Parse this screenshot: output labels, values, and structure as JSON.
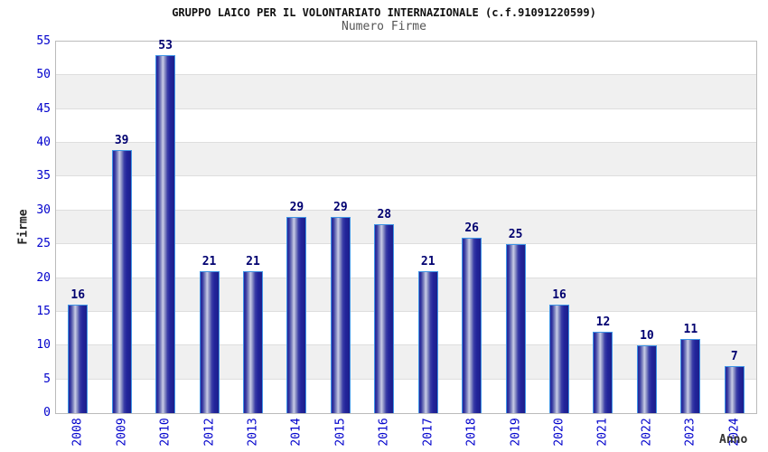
{
  "chart_data": {
    "type": "bar",
    "title": "GRUPPO LAICO PER IL VOLONTARIATO INTERNAZIONALE (c.f.91091220599)",
    "subtitle": "Numero Firme",
    "xlabel": "Anno",
    "ylabel": "Firme",
    "categories": [
      "2008",
      "2009",
      "2010",
      "2012",
      "2013",
      "2014",
      "2015",
      "2016",
      "2017",
      "2018",
      "2019",
      "2020",
      "2021",
      "2022",
      "2023",
      "2024"
    ],
    "values": [
      16,
      39,
      53,
      21,
      21,
      29,
      29,
      28,
      21,
      26,
      25,
      16,
      12,
      10,
      11,
      7
    ],
    "ylim": [
      0,
      55
    ],
    "ytick_step": 5,
    "grid": true,
    "legend": "none",
    "colors": {
      "bar_dark": "#23259c",
      "bar_highlight": "#c9cde6",
      "bar_stroke": "#3f95e6",
      "tick_label": "#0000cc",
      "value_label": "#000070",
      "band_gray": "#f0f0f0",
      "band_white": "#ffffff",
      "plot_border": "#bbbbbb",
      "title_color": "#111111",
      "subtitle_color": "#555555"
    }
  }
}
